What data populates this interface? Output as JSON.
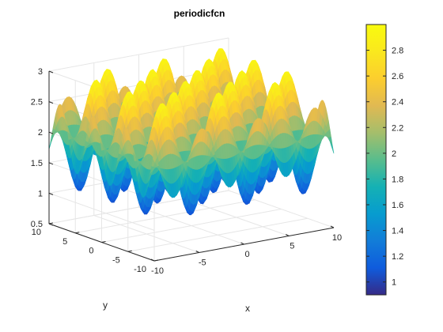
{
  "figure": {
    "background": "#ffffff"
  },
  "chart_data": {
    "type": "surface",
    "title": "periodicfcn",
    "xlabel": "x",
    "ylabel": "y",
    "zlabel": "",
    "function": "2 + sin(x)*sin(y)... periodic surface, z range approx 0.9 to 3",
    "x_range": [
      -10,
      10
    ],
    "y_range": [
      -10,
      10
    ],
    "zlim": [
      0.5,
      3
    ],
    "x_ticks": [
      -10,
      -5,
      0,
      5,
      10
    ],
    "y_ticks": [
      -10,
      -5,
      0,
      5,
      10
    ],
    "z_ticks": [
      0.5,
      1,
      1.5,
      2,
      2.5,
      3
    ],
    "x_tick_labels": [
      "-10",
      "-5",
      "0",
      "5",
      "10"
    ],
    "y_tick_labels": [
      "-10",
      "-5",
      "0",
      "5",
      "10"
    ],
    "z_tick_labels": [
      "0.5",
      "1",
      "1.5",
      "2",
      "2.5",
      "3"
    ],
    "grid": true,
    "colormap": "parula",
    "colorbar": {
      "placement": "right",
      "range": [
        0.9,
        3.0
      ],
      "ticks": [
        1,
        1.2,
        1.4,
        1.6,
        1.8,
        2,
        2.2,
        2.4,
        2.6,
        2.8
      ],
      "tick_labels": [
        "1",
        "1.2",
        "1.4",
        "1.6",
        "1.8",
        "2",
        "2.2",
        "2.4",
        "2.6",
        "2.8"
      ]
    },
    "view": {
      "azimuth_deg": -37.5,
      "elevation_deg": 30
    }
  }
}
